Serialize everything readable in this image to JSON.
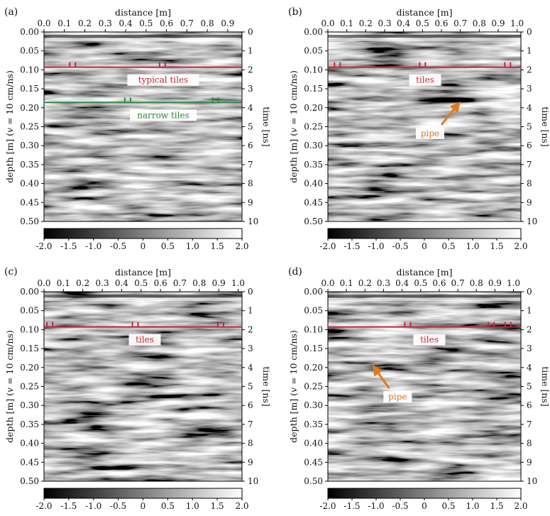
{
  "figure": {
    "colorbar": {
      "ticks": [
        "-2.0",
        "-1.5",
        "-1.0",
        "-0.5",
        "0",
        "0.5",
        "1.0",
        "1.5",
        "2.0"
      ],
      "range": [
        -2.0,
        2.0
      ]
    },
    "panels": [
      {
        "id": "a",
        "label": "(a)",
        "xlabel": "distance [m]",
        "ylabel_left": [
          "depth [m] (",
          "v",
          " = 10 cm/ns)"
        ],
        "ylabel_right": "time [ns]",
        "xticks": [
          "0.0",
          "0.1",
          "0.2",
          "0.3",
          "0.4",
          "0.5",
          "0.6",
          "0.7",
          "0.8",
          "0.9"
        ],
        "xrange": [
          0.0,
          0.97
        ],
        "depth_ticks": [
          "0.00",
          "0.05",
          "0.10",
          "0.15",
          "0.20",
          "0.25",
          "0.30",
          "0.35",
          "0.40",
          "0.45",
          "0.50"
        ],
        "time_ticks": [
          "0",
          "1",
          "2",
          "3",
          "4",
          "5",
          "6",
          "7",
          "8",
          "9",
          "10"
        ],
        "lines": [
          {
            "label": "typical tiles",
            "depth": 0.093,
            "color": "#c0283a",
            "markers": [
              0.14,
              0.58
            ]
          },
          {
            "label": "narrow tiles",
            "depth": 0.186,
            "color": "#2e8b3c",
            "markers": [
              0.41,
              0.84
            ]
          }
        ],
        "arrows": []
      },
      {
        "id": "b",
        "label": "(b)",
        "xlabel": "distance [m]",
        "ylabel_left": [
          "depth [m] (",
          "v",
          " = 10 cm/ns)"
        ],
        "ylabel_right": "time [ns]",
        "xticks": [
          "0.0",
          "0.1",
          "0.2",
          "0.3",
          "0.4",
          "0.5",
          "0.6",
          "0.7",
          "0.8",
          "0.9",
          "1.0"
        ],
        "xrange": [
          0.0,
          1.02
        ],
        "depth_ticks": [
          "0.00",
          "0.05",
          "0.10",
          "0.15",
          "0.20",
          "0.25",
          "0.30",
          "0.35",
          "0.40",
          "0.45",
          "0.50"
        ],
        "time_ticks": [
          "0",
          "1",
          "2",
          "3",
          "4",
          "5",
          "6",
          "7",
          "8",
          "9",
          "10"
        ],
        "lines": [
          {
            "label": "tiles",
            "depth": 0.093,
            "color": "#c0283a",
            "markers": [
              0.05,
              0.5,
              0.95
            ]
          }
        ],
        "arrows": [
          {
            "label": "pipe",
            "color": "#e07b1e",
            "from": [
              0.6,
              0.245
            ],
            "to": [
              0.69,
              0.19
            ]
          }
        ]
      },
      {
        "id": "c",
        "label": "(c)",
        "xlabel": "distance [m]",
        "ylabel_left": [
          "depth [m] (",
          "v",
          " = 10 cm/ns)"
        ],
        "ylabel_right": "time [ns]",
        "xticks": [
          "0.0",
          "0.1",
          "0.2",
          "0.3",
          "0.4",
          "0.5",
          "0.6",
          "0.7",
          "0.8",
          "0.9",
          "1.0"
        ],
        "xrange": [
          0.0,
          1.02
        ],
        "depth_ticks": [
          "0.00",
          "0.05",
          "0.10",
          "0.15",
          "0.20",
          "0.25",
          "0.30",
          "0.35",
          "0.40",
          "0.45",
          "0.50"
        ],
        "time_ticks": [
          "0",
          "1",
          "2",
          "3",
          "4",
          "5",
          "6",
          "7",
          "8",
          "9",
          "10"
        ],
        "lines": [
          {
            "label": "tiles",
            "depth": 0.093,
            "color": "#c0283a",
            "markers": [
              0.03,
              0.47,
              0.91
            ]
          }
        ],
        "arrows": []
      },
      {
        "id": "d",
        "label": "(d)",
        "xlabel": "distance [m]",
        "ylabel_left": [
          "depth [m] (",
          "v",
          " = 10 cm/ns)"
        ],
        "ylabel_right": "time [ns]",
        "xticks": [
          "0.0",
          "0.1",
          "0.2",
          "0.3",
          "0.4",
          "0.5",
          "0.6",
          "0.7",
          "0.8",
          "0.9",
          "1.0"
        ],
        "xrange": [
          0.0,
          1.04
        ],
        "depth_ticks": [
          "0.00",
          "0.05",
          "0.10",
          "0.15",
          "0.20",
          "0.25",
          "0.30",
          "0.35",
          "0.40",
          "0.45",
          "0.50"
        ],
        "time_ticks": [
          "0",
          "1",
          "2",
          "3",
          "4",
          "5",
          "6",
          "7",
          "8",
          "9",
          "10"
        ],
        "lines": [
          {
            "label": "tiles",
            "depth": 0.093,
            "color": "#c0283a",
            "markers": [
              0.43,
              0.88,
              0.97
            ]
          }
        ],
        "arrows": [
          {
            "label": "pipe",
            "color": "#e07b1e",
            "from": [
              0.33,
              0.255
            ],
            "to": [
              0.25,
              0.2
            ]
          }
        ]
      }
    ]
  },
  "chart_data": [
    {
      "type": "heatmap",
      "panel": "(a)",
      "title": "",
      "xlabel": "distance [m]",
      "ylabel": "depth [m] (v = 10 cm/ns)",
      "ylabel_right": "time [ns]",
      "xlim": [
        0.0,
        0.97
      ],
      "ylim": [
        0.0,
        0.5
      ],
      "time_lim": [
        0,
        10
      ],
      "color_range": [
        -2.0,
        2.0
      ],
      "colormap": "grayscale",
      "annotations": [
        "typical tiles",
        "narrow tiles"
      ]
    },
    {
      "type": "heatmap",
      "panel": "(b)",
      "title": "",
      "xlabel": "distance [m]",
      "ylabel": "depth [m] (v = 10 cm/ns)",
      "ylabel_right": "time [ns]",
      "xlim": [
        0.0,
        1.02
      ],
      "ylim": [
        0.0,
        0.5
      ],
      "time_lim": [
        0,
        10
      ],
      "color_range": [
        -2.0,
        2.0
      ],
      "colormap": "grayscale",
      "annotations": [
        "tiles",
        "pipe"
      ]
    },
    {
      "type": "heatmap",
      "panel": "(c)",
      "title": "",
      "xlabel": "distance [m]",
      "ylabel": "depth [m] (v = 10 cm/ns)",
      "ylabel_right": "time [ns]",
      "xlim": [
        0.0,
        1.02
      ],
      "ylim": [
        0.0,
        0.5
      ],
      "time_lim": [
        0,
        10
      ],
      "color_range": [
        -2.0,
        2.0
      ],
      "colormap": "grayscale",
      "annotations": [
        "tiles"
      ]
    },
    {
      "type": "heatmap",
      "panel": "(d)",
      "title": "",
      "xlabel": "distance [m]",
      "ylabel": "depth [m] (v = 10 cm/ns)",
      "ylabel_right": "time [ns]",
      "xlim": [
        0.0,
        1.04
      ],
      "ylim": [
        0.0,
        0.5
      ],
      "time_lim": [
        0,
        10
      ],
      "color_range": [
        -2.0,
        2.0
      ],
      "colormap": "grayscale",
      "annotations": [
        "tiles",
        "pipe"
      ]
    }
  ]
}
